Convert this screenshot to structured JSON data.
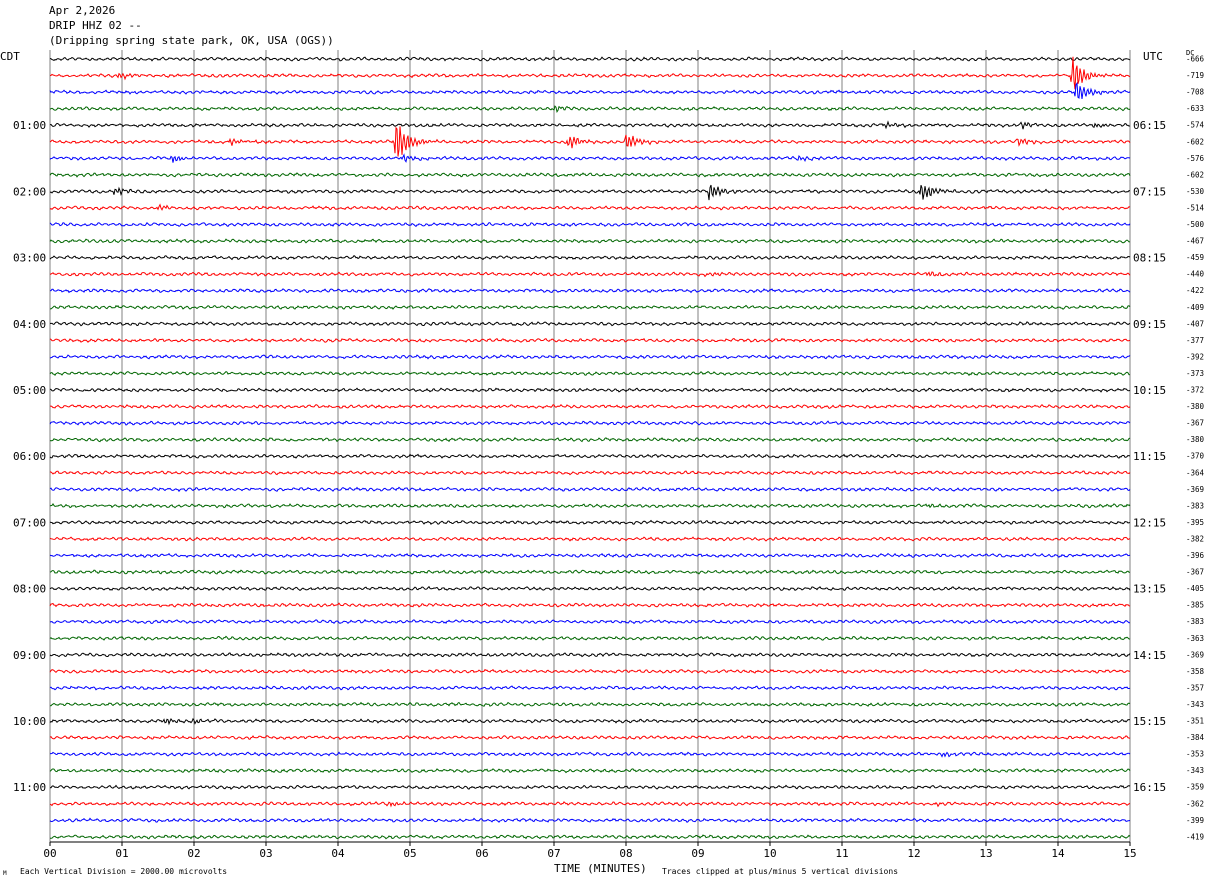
{
  "header": {
    "date": "Apr 2,2026",
    "station": "DRIP HHZ 02 --",
    "location": "(Dripping spring state park, OK, USA (OGS))"
  },
  "timezone_left": "CDT",
  "timezone_right": "UTC",
  "dc_label": "DC",
  "footer": {
    "scale": "Each Vertical Division = 2000.00 microvolts",
    "clip": "Traces clipped at plus/minus 5 vertical divisions",
    "corner": "M"
  },
  "colors": {
    "black": "#000000",
    "red": "#ff0000",
    "blue": "#0000ff",
    "green": "#006600",
    "grid": "#808080"
  },
  "chart_data": {
    "type": "line",
    "title": "DRIP HHZ 02 --",
    "xlabel": "TIME (MINUTES)",
    "xlim": [
      0,
      15
    ],
    "x_ticks": [
      "00",
      "01",
      "02",
      "03",
      "04",
      "05",
      "06",
      "07",
      "08",
      "09",
      "10",
      "11",
      "12",
      "13",
      "14",
      "15"
    ],
    "rows_per_hour": 4,
    "left_hour_labels": [
      "01:00",
      "02:00",
      "03:00",
      "04:00",
      "05:00",
      "06:00",
      "07:00",
      "08:00",
      "09:00",
      "10:00",
      "11:00"
    ],
    "right_hour_labels": [
      "06:15",
      "07:15",
      "08:15",
      "09:15",
      "10:15",
      "11:15",
      "12:15",
      "13:15",
      "14:15",
      "15:15",
      "16:15"
    ],
    "trace_colors": [
      "black",
      "red",
      "blue",
      "green"
    ],
    "dc_offsets": [
      -666,
      -719,
      -708,
      -633,
      -574,
      -602,
      -576,
      -602,
      -530,
      -514,
      -500,
      -467,
      -459,
      -440,
      -422,
      -409,
      -407,
      -377,
      -392,
      -373,
      -372,
      -380,
      -367,
      -380,
      -370,
      -364,
      -369,
      -383,
      -395,
      -382,
      -396,
      -367,
      -405,
      -385,
      -383,
      -363,
      -369,
      -358,
      -357,
      -343,
      -351,
      -384,
      -353,
      -343,
      -359,
      -362,
      -399,
      -419
    ],
    "events": [
      {
        "row": 1,
        "minute": 0.95,
        "amp": 4
      },
      {
        "row": 1,
        "minute": 14.2,
        "amp": 22
      },
      {
        "row": 2,
        "minute": 14.25,
        "amp": 14
      },
      {
        "row": 3,
        "minute": 7.0,
        "amp": 3
      },
      {
        "row": 4,
        "minute": 11.6,
        "amp": 3
      },
      {
        "row": 4,
        "minute": 13.5,
        "amp": 4
      },
      {
        "row": 4,
        "minute": 14.5,
        "amp": 3
      },
      {
        "row": 5,
        "minute": 2.5,
        "amp": 4
      },
      {
        "row": 5,
        "minute": 4.8,
        "amp": 30
      },
      {
        "row": 5,
        "minute": 7.2,
        "amp": 8
      },
      {
        "row": 5,
        "minute": 8.0,
        "amp": 10
      },
      {
        "row": 5,
        "minute": 13.45,
        "amp": 5
      },
      {
        "row": 6,
        "minute": 1.7,
        "amp": 5
      },
      {
        "row": 6,
        "minute": 4.9,
        "amp": 4
      },
      {
        "row": 6,
        "minute": 10.4,
        "amp": 3
      },
      {
        "row": 8,
        "minute": 0.9,
        "amp": 4
      },
      {
        "row": 8,
        "minute": 9.15,
        "amp": 10
      },
      {
        "row": 8,
        "minute": 12.1,
        "amp": 12
      },
      {
        "row": 9,
        "minute": 1.5,
        "amp": 3
      },
      {
        "row": 13,
        "minute": 12.2,
        "amp": 3
      },
      {
        "row": 13,
        "minute": 9.1,
        "amp": 2
      },
      {
        "row": 27,
        "minute": 12.2,
        "amp": 2
      },
      {
        "row": 40,
        "minute": 1.6,
        "amp": 4
      },
      {
        "row": 40,
        "minute": 2.0,
        "amp": 3
      },
      {
        "row": 42,
        "minute": 12.4,
        "amp": 3
      },
      {
        "row": 45,
        "minute": 4.7,
        "amp": 3
      },
      {
        "row": 45,
        "minute": 12.3,
        "amp": 2
      }
    ]
  }
}
